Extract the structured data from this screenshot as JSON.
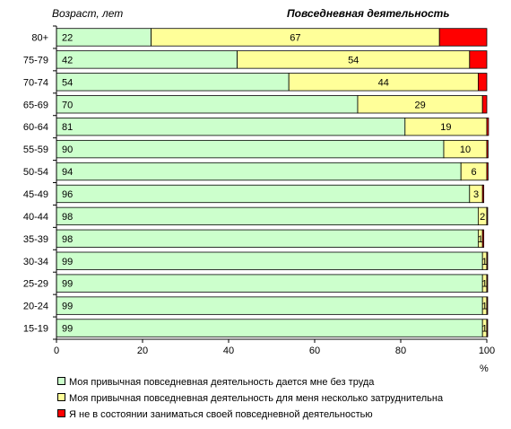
{
  "chart_data": {
    "type": "bar",
    "orientation": "horizontal",
    "stacked": true,
    "title_left": "Возраст, лет",
    "title_right": "Повседневная деятельность",
    "x_unit": "%",
    "xlim": [
      0,
      100
    ],
    "xticks": [
      "0",
      "20",
      "40",
      "60",
      "80",
      "100"
    ],
    "categories": [
      "80+",
      "75-79",
      "70-74",
      "65-69",
      "60-64",
      "55-59",
      "50-54",
      "45-49",
      "40-44",
      "35-39",
      "30-34",
      "25-29",
      "20-24",
      "15-19"
    ],
    "series": [
      {
        "name": "Моя привычная повседневная деятельность дается мне без труда",
        "color": "#ccffcc",
        "values": [
          22,
          42,
          54,
          70,
          81,
          90,
          94,
          96,
          98,
          98,
          99,
          99,
          99,
          99
        ]
      },
      {
        "name": "Моя привычная повседневная деятельность для меня несколько затруднительна",
        "color": "#ffff99",
        "values": [
          67,
          54,
          44,
          29,
          19,
          10,
          6,
          3,
          2,
          1,
          1,
          1,
          1,
          1
        ]
      },
      {
        "name": "Я не в состоянии заниматься своей повседневной деятельностью",
        "color": "#ff0000",
        "values": [
          11,
          4,
          2,
          1,
          0.4,
          0.3,
          0.3,
          0.3,
          0.2,
          0.3,
          0.2,
          0.2,
          0.2,
          0.2
        ]
      }
    ],
    "grid": false,
    "legend_position": "bottom"
  }
}
